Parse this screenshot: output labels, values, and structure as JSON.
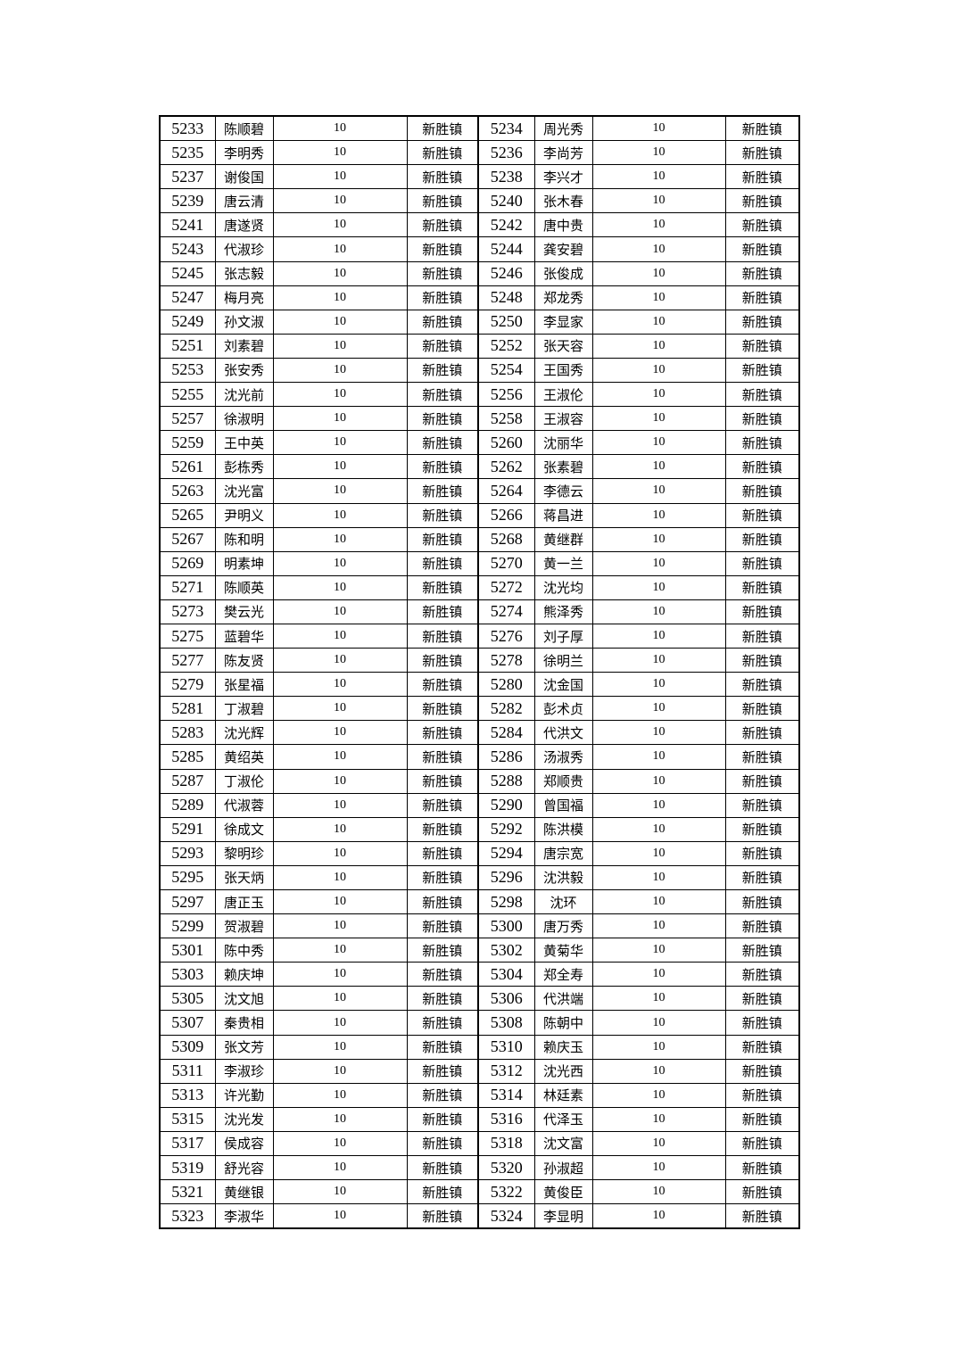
{
  "rows": [
    [
      [
        "5233",
        "陈顺碧",
        "10",
        "新胜镇"
      ],
      [
        "5234",
        "周光秀",
        "10",
        "新胜镇"
      ]
    ],
    [
      [
        "5235",
        "李明秀",
        "10",
        "新胜镇"
      ],
      [
        "5236",
        "李尚芳",
        "10",
        "新胜镇"
      ]
    ],
    [
      [
        "5237",
        "谢俊国",
        "10",
        "新胜镇"
      ],
      [
        "5238",
        "李兴才",
        "10",
        "新胜镇"
      ]
    ],
    [
      [
        "5239",
        "唐云清",
        "10",
        "新胜镇"
      ],
      [
        "5240",
        "张木春",
        "10",
        "新胜镇"
      ]
    ],
    [
      [
        "5241",
        "唐遂贤",
        "10",
        "新胜镇"
      ],
      [
        "5242",
        "唐中贵",
        "10",
        "新胜镇"
      ]
    ],
    [
      [
        "5243",
        "代淑珍",
        "10",
        "新胜镇"
      ],
      [
        "5244",
        "龚安碧",
        "10",
        "新胜镇"
      ]
    ],
    [
      [
        "5245",
        "张志毅",
        "10",
        "新胜镇"
      ],
      [
        "5246",
        "张俊成",
        "10",
        "新胜镇"
      ]
    ],
    [
      [
        "5247",
        "梅月亮",
        "10",
        "新胜镇"
      ],
      [
        "5248",
        "郑龙秀",
        "10",
        "新胜镇"
      ]
    ],
    [
      [
        "5249",
        "孙文淑",
        "10",
        "新胜镇"
      ],
      [
        "5250",
        "李显家",
        "10",
        "新胜镇"
      ]
    ],
    [
      [
        "5251",
        "刘素碧",
        "10",
        "新胜镇"
      ],
      [
        "5252",
        "张天容",
        "10",
        "新胜镇"
      ]
    ],
    [
      [
        "5253",
        "张安秀",
        "10",
        "新胜镇"
      ],
      [
        "5254",
        "王国秀",
        "10",
        "新胜镇"
      ]
    ],
    [
      [
        "5255",
        "沈光前",
        "10",
        "新胜镇"
      ],
      [
        "5256",
        "王淑伦",
        "10",
        "新胜镇"
      ]
    ],
    [
      [
        "5257",
        "徐淑明",
        "10",
        "新胜镇"
      ],
      [
        "5258",
        "王淑容",
        "10",
        "新胜镇"
      ]
    ],
    [
      [
        "5259",
        "王中英",
        "10",
        "新胜镇"
      ],
      [
        "5260",
        "沈丽华",
        "10",
        "新胜镇"
      ]
    ],
    [
      [
        "5261",
        "彭栋秀",
        "10",
        "新胜镇"
      ],
      [
        "5262",
        "张素碧",
        "10",
        "新胜镇"
      ]
    ],
    [
      [
        "5263",
        "沈光富",
        "10",
        "新胜镇"
      ],
      [
        "5264",
        "李德云",
        "10",
        "新胜镇"
      ]
    ],
    [
      [
        "5265",
        "尹明义",
        "10",
        "新胜镇"
      ],
      [
        "5266",
        "蒋昌进",
        "10",
        "新胜镇"
      ]
    ],
    [
      [
        "5267",
        "陈和明",
        "10",
        "新胜镇"
      ],
      [
        "5268",
        "黄继群",
        "10",
        "新胜镇"
      ]
    ],
    [
      [
        "5269",
        "明素坤",
        "10",
        "新胜镇"
      ],
      [
        "5270",
        "黄一兰",
        "10",
        "新胜镇"
      ]
    ],
    [
      [
        "5271",
        "陈顺英",
        "10",
        "新胜镇"
      ],
      [
        "5272",
        "沈光均",
        "10",
        "新胜镇"
      ]
    ],
    [
      [
        "5273",
        "樊云光",
        "10",
        "新胜镇"
      ],
      [
        "5274",
        "熊泽秀",
        "10",
        "新胜镇"
      ]
    ],
    [
      [
        "5275",
        "蓝碧华",
        "10",
        "新胜镇"
      ],
      [
        "5276",
        "刘子厚",
        "10",
        "新胜镇"
      ]
    ],
    [
      [
        "5277",
        "陈友贤",
        "10",
        "新胜镇"
      ],
      [
        "5278",
        "徐明兰",
        "10",
        "新胜镇"
      ]
    ],
    [
      [
        "5279",
        "张星福",
        "10",
        "新胜镇"
      ],
      [
        "5280",
        "沈金国",
        "10",
        "新胜镇"
      ]
    ],
    [
      [
        "5281",
        "丁淑碧",
        "10",
        "新胜镇"
      ],
      [
        "5282",
        "彭术贞",
        "10",
        "新胜镇"
      ]
    ],
    [
      [
        "5283",
        "沈光辉",
        "10",
        "新胜镇"
      ],
      [
        "5284",
        "代洪文",
        "10",
        "新胜镇"
      ]
    ],
    [
      [
        "5285",
        "黄绍英",
        "10",
        "新胜镇"
      ],
      [
        "5286",
        "汤淑秀",
        "10",
        "新胜镇"
      ]
    ],
    [
      [
        "5287",
        "丁淑伦",
        "10",
        "新胜镇"
      ],
      [
        "5288",
        "郑顺贵",
        "10",
        "新胜镇"
      ]
    ],
    [
      [
        "5289",
        "代淑蓉",
        "10",
        "新胜镇"
      ],
      [
        "5290",
        "曾国福",
        "10",
        "新胜镇"
      ]
    ],
    [
      [
        "5291",
        "徐成文",
        "10",
        "新胜镇"
      ],
      [
        "5292",
        "陈洪模",
        "10",
        "新胜镇"
      ]
    ],
    [
      [
        "5293",
        "黎明珍",
        "10",
        "新胜镇"
      ],
      [
        "5294",
        "唐宗宽",
        "10",
        "新胜镇"
      ]
    ],
    [
      [
        "5295",
        "张天炳",
        "10",
        "新胜镇"
      ],
      [
        "5296",
        "沈洪毅",
        "10",
        "新胜镇"
      ]
    ],
    [
      [
        "5297",
        "唐正玉",
        "10",
        "新胜镇"
      ],
      [
        "5298",
        "沈环",
        "10",
        "新胜镇"
      ]
    ],
    [
      [
        "5299",
        "贺淑碧",
        "10",
        "新胜镇"
      ],
      [
        "5300",
        "唐万秀",
        "10",
        "新胜镇"
      ]
    ],
    [
      [
        "5301",
        "陈中秀",
        "10",
        "新胜镇"
      ],
      [
        "5302",
        "黄菊华",
        "10",
        "新胜镇"
      ]
    ],
    [
      [
        "5303",
        "赖庆坤",
        "10",
        "新胜镇"
      ],
      [
        "5304",
        "郑全寿",
        "10",
        "新胜镇"
      ]
    ],
    [
      [
        "5305",
        "沈文旭",
        "10",
        "新胜镇"
      ],
      [
        "5306",
        "代洪端",
        "10",
        "新胜镇"
      ]
    ],
    [
      [
        "5307",
        "秦贵相",
        "10",
        "新胜镇"
      ],
      [
        "5308",
        "陈朝中",
        "10",
        "新胜镇"
      ]
    ],
    [
      [
        "5309",
        "张文芳",
        "10",
        "新胜镇"
      ],
      [
        "5310",
        "赖庆玉",
        "10",
        "新胜镇"
      ]
    ],
    [
      [
        "5311",
        "李淑珍",
        "10",
        "新胜镇"
      ],
      [
        "5312",
        "沈光西",
        "10",
        "新胜镇"
      ]
    ],
    [
      [
        "5313",
        "许光勤",
        "10",
        "新胜镇"
      ],
      [
        "5314",
        "林廷素",
        "10",
        "新胜镇"
      ]
    ],
    [
      [
        "5315",
        "沈光发",
        "10",
        "新胜镇"
      ],
      [
        "5316",
        "代泽玉",
        "10",
        "新胜镇"
      ]
    ],
    [
      [
        "5317",
        "侯成容",
        "10",
        "新胜镇"
      ],
      [
        "5318",
        "沈文富",
        "10",
        "新胜镇"
      ]
    ],
    [
      [
        "5319",
        "舒光容",
        "10",
        "新胜镇"
      ],
      [
        "5320",
        "孙淑超",
        "10",
        "新胜镇"
      ]
    ],
    [
      [
        "5321",
        "黄继银",
        "10",
        "新胜镇"
      ],
      [
        "5322",
        "黄俊臣",
        "10",
        "新胜镇"
      ]
    ],
    [
      [
        "5323",
        "李淑华",
        "10",
        "新胜镇"
      ],
      [
        "5324",
        "李显明",
        "10",
        "新胜镇"
      ]
    ]
  ]
}
